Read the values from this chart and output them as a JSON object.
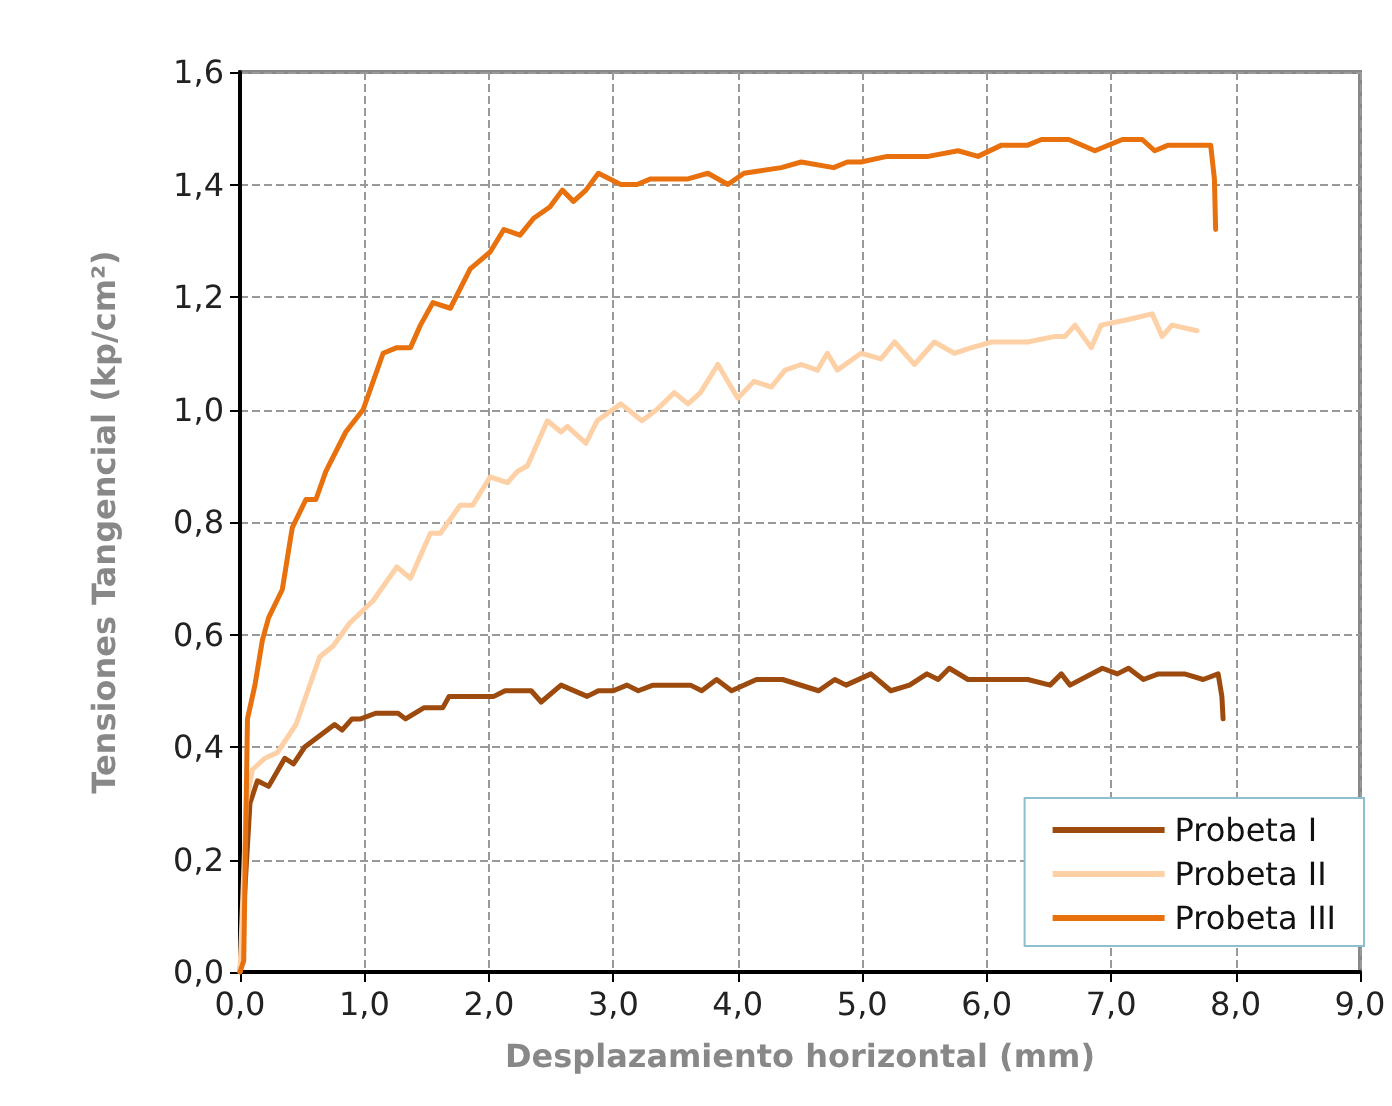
{
  "chart_data": {
    "type": "line",
    "xlabel": "Desplazamiento horizontal (mm)",
    "ylabel": "Tensiones Tangencial (kp/cm²)",
    "xlim": [
      0,
      9
    ],
    "xticks": [
      {
        "value": 0,
        "label": "0,0"
      },
      {
        "value": 1,
        "label": "1,0"
      },
      {
        "value": 2,
        "label": "2,0"
      },
      {
        "value": 3,
        "label": "3,0"
      },
      {
        "value": 4,
        "label": "4,0"
      },
      {
        "value": 5,
        "label": "5,0"
      },
      {
        "value": 6,
        "label": "6,0"
      },
      {
        "value": 7,
        "label": "7,0"
      },
      {
        "value": 8,
        "label": "8,0"
      },
      {
        "value": 9,
        "label": "9,0"
      }
    ],
    "ylim": [
      0,
      1.6
    ],
    "yticks": [
      {
        "value": 0,
        "label": "0,0"
      },
      {
        "value": 0.2,
        "label": "0,2"
      },
      {
        "value": 0.4,
        "label": "0,4"
      },
      {
        "value": 0.6,
        "label": "0,6"
      },
      {
        "value": 0.8,
        "label": "0,8"
      },
      {
        "value": 1,
        "label": "1,0"
      },
      {
        "value": 1.2,
        "label": "1,2"
      },
      {
        "value": 1.4,
        "label": "1,4"
      },
      {
        "value": 1.6,
        "label": "1,6"
      }
    ],
    "grid": true,
    "legend": "bottom right",
    "line_style": "solid",
    "series": [
      {
        "name": "Probeta I",
        "color": "#9c4a0e",
        "x": [
          0,
          0.08,
          0.14,
          0.23,
          0.36,
          0.43,
          0.52,
          0.64,
          0.76,
          0.82,
          0.9,
          0.97,
          1.09,
          1.27,
          1.33,
          1.48,
          1.63,
          1.68,
          1.8,
          2.04,
          2.13,
          2.22,
          2.34,
          2.42,
          2.58,
          2.79,
          2.88,
          3.0,
          3.11,
          3.2,
          3.32,
          3.62,
          3.71,
          3.83,
          3.95,
          4.15,
          4.36,
          4.65,
          4.78,
          4.87,
          5.07,
          5.23,
          5.38,
          5.52,
          5.61,
          5.7,
          5.85,
          6.03,
          6.33,
          6.51,
          6.6,
          6.67,
          6.93,
          7.05,
          7.14,
          7.26,
          7.38,
          7.59,
          7.74,
          7.86,
          7.89,
          7.9
        ],
        "values": [
          0,
          0.3,
          0.34,
          0.33,
          0.38,
          0.37,
          0.4,
          0.42,
          0.44,
          0.43,
          0.45,
          0.45,
          0.46,
          0.46,
          0.45,
          0.47,
          0.47,
          0.49,
          0.49,
          0.49,
          0.5,
          0.5,
          0.5,
          0.48,
          0.51,
          0.49,
          0.5,
          0.5,
          0.51,
          0.5,
          0.51,
          0.51,
          0.5,
          0.52,
          0.5,
          0.52,
          0.52,
          0.5,
          0.52,
          0.51,
          0.53,
          0.5,
          0.51,
          0.53,
          0.52,
          0.54,
          0.52,
          0.52,
          0.52,
          0.51,
          0.53,
          0.51,
          0.54,
          0.53,
          0.54,
          0.52,
          0.53,
          0.53,
          0.52,
          0.53,
          0.49,
          0.45
        ]
      },
      {
        "name": "Probeta II",
        "color": "#fdd0a6",
        "x": [
          0,
          0.05,
          0.1,
          0.2,
          0.3,
          0.45,
          0.64,
          0.75,
          0.88,
          1.07,
          1.26,
          1.37,
          1.53,
          1.61,
          1.77,
          1.87,
          2.01,
          2.15,
          2.23,
          2.31,
          2.47,
          2.58,
          2.63,
          2.78,
          2.87,
          3.06,
          3.23,
          3.35,
          3.49,
          3.6,
          3.7,
          3.84,
          4.0,
          4.13,
          4.27,
          4.38,
          4.51,
          4.64,
          4.72,
          4.8,
          4.99,
          5.15,
          5.26,
          5.42,
          5.58,
          5.74,
          5.88,
          6.04,
          6.33,
          6.55,
          6.63,
          6.71,
          6.84,
          6.92,
          7.14,
          7.33,
          7.41,
          7.49,
          7.69
        ],
        "values": [
          0,
          0.3,
          0.36,
          0.38,
          0.39,
          0.44,
          0.56,
          0.58,
          0.62,
          0.66,
          0.72,
          0.7,
          0.78,
          0.78,
          0.83,
          0.83,
          0.88,
          0.87,
          0.89,
          0.9,
          0.98,
          0.96,
          0.97,
          0.94,
          0.98,
          1.01,
          0.98,
          1.0,
          1.03,
          1.01,
          1.03,
          1.08,
          1.02,
          1.05,
          1.04,
          1.07,
          1.08,
          1.07,
          1.1,
          1.07,
          1.1,
          1.09,
          1.12,
          1.08,
          1.12,
          1.1,
          1.11,
          1.12,
          1.12,
          1.13,
          1.13,
          1.15,
          1.11,
          1.15,
          1.16,
          1.17,
          1.13,
          1.15,
          1.14
        ]
      },
      {
        "name": "Probeta III",
        "color": "#e8710e",
        "x": [
          0,
          0.03,
          0.06,
          0.12,
          0.18,
          0.23,
          0.34,
          0.42,
          0.53,
          0.61,
          0.69,
          0.85,
          0.99,
          1.15,
          1.26,
          1.37,
          1.45,
          1.55,
          1.69,
          1.85,
          2.01,
          2.12,
          2.25,
          2.36,
          2.49,
          2.59,
          2.68,
          2.78,
          2.88,
          3.06,
          3.19,
          3.3,
          3.6,
          3.76,
          3.92,
          4.05,
          4.35,
          4.51,
          4.77,
          4.88,
          4.99,
          5.2,
          5.53,
          5.77,
          5.93,
          6.12,
          6.33,
          6.44,
          6.66,
          6.87,
          7.09,
          7.25,
          7.35,
          7.46,
          7.68,
          7.8,
          7.83,
          7.84
        ],
        "values": [
          0,
          0.02,
          0.45,
          0.51,
          0.59,
          0.63,
          0.68,
          0.79,
          0.84,
          0.84,
          0.89,
          0.96,
          1.0,
          1.1,
          1.11,
          1.11,
          1.15,
          1.19,
          1.18,
          1.25,
          1.28,
          1.32,
          1.31,
          1.34,
          1.36,
          1.39,
          1.37,
          1.39,
          1.42,
          1.4,
          1.4,
          1.41,
          1.41,
          1.42,
          1.4,
          1.42,
          1.43,
          1.44,
          1.43,
          1.44,
          1.44,
          1.45,
          1.45,
          1.46,
          1.45,
          1.47,
          1.47,
          1.48,
          1.48,
          1.46,
          1.48,
          1.48,
          1.46,
          1.47,
          1.47,
          1.47,
          1.41,
          1.32
        ]
      }
    ]
  }
}
